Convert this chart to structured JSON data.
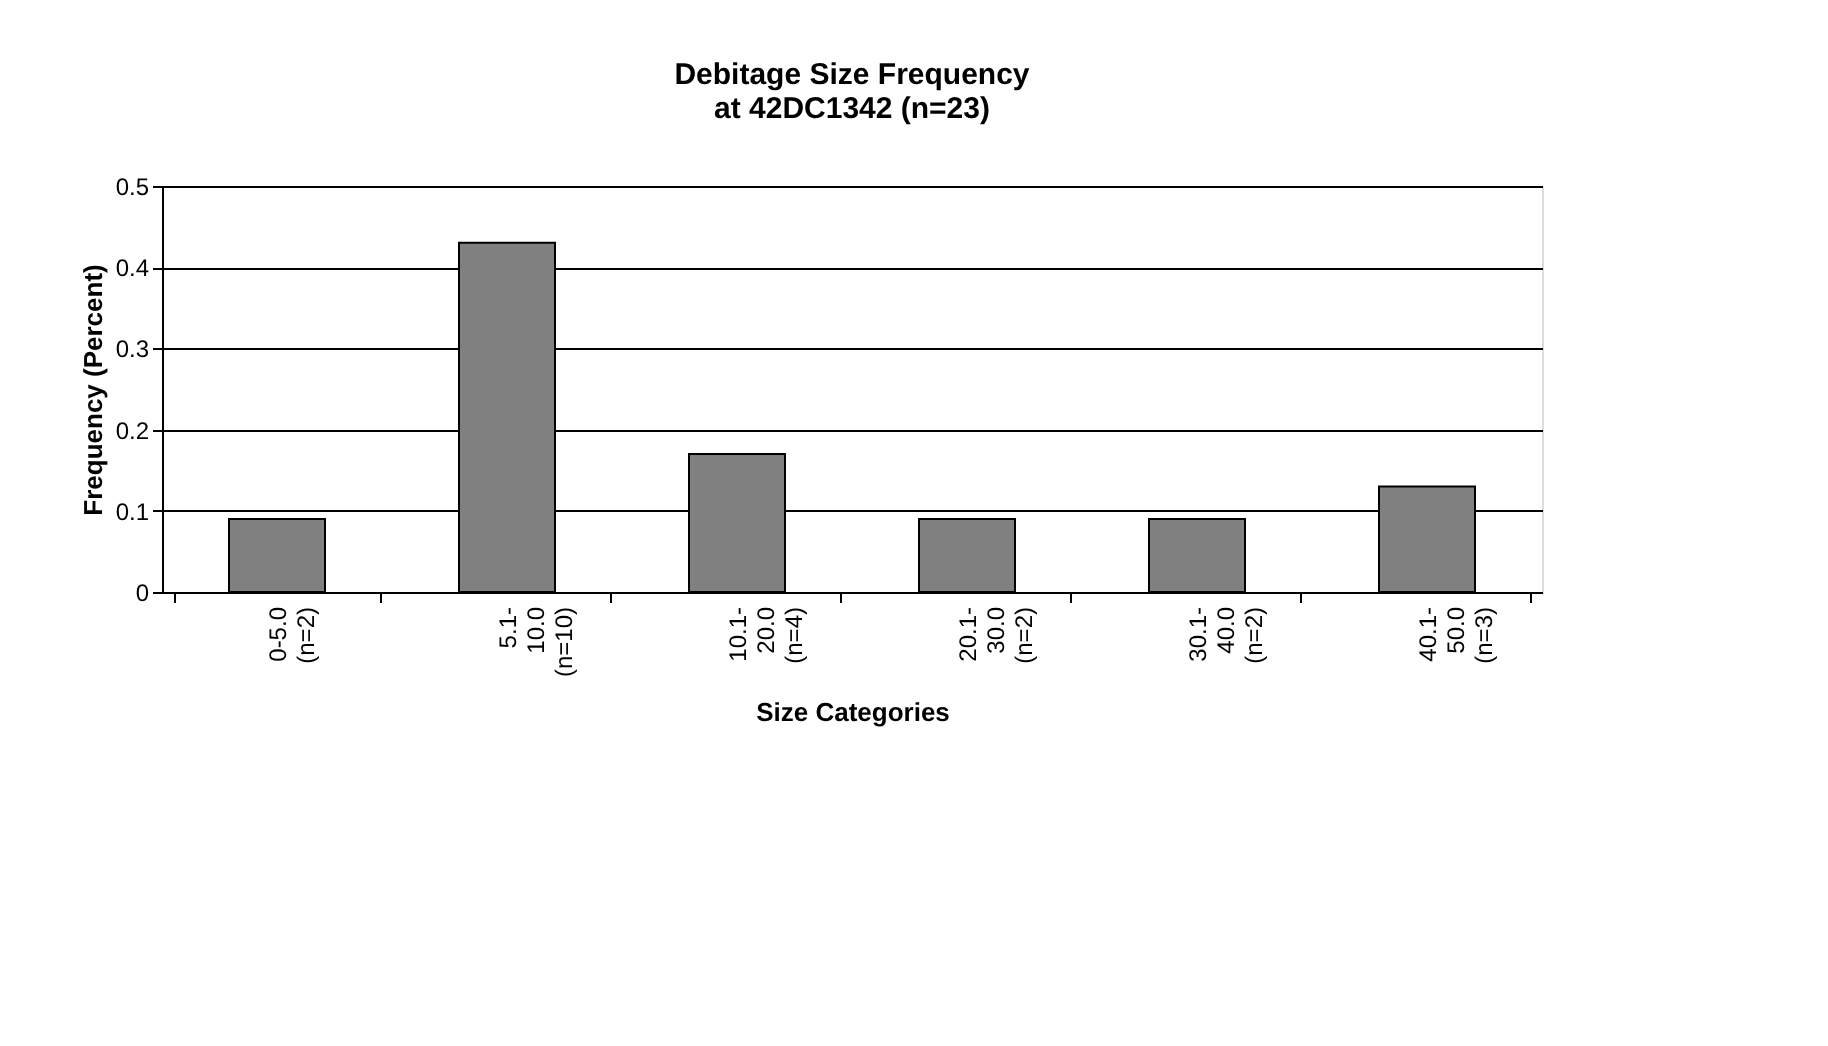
{
  "chart_data": {
    "type": "bar",
    "title": [
      "Debitage Size Frequency",
      "at 42DC1342 (n=23)"
    ],
    "xlabel": "Size Categories",
    "ylabel": "Frequency (Percent)",
    "categories": [
      "0-5.0\n(n=2)",
      "5.1-\n10.0\n(n=10)",
      "10.1-\n20.0\n(n=4)",
      "20.1-\n30.0\n(n=2)",
      "30.1-\n40.0\n(n=2)",
      "40.1-\n50.0\n(n=3)"
    ],
    "values": [
      0.09,
      0.43,
      0.17,
      0.09,
      0.09,
      0.13
    ],
    "color": "#808080",
    "ylim": [
      0,
      0.5
    ],
    "yticks": [
      0,
      0.1,
      0.2,
      0.3,
      0.4,
      0.5
    ],
    "grid": "y"
  }
}
